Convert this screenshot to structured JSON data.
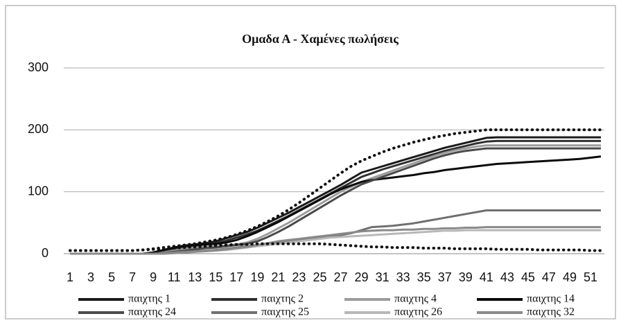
{
  "chart_data": {
    "type": "line",
    "title": "Ομαδα Α - Χαμένες πωλήσεις",
    "categories": [
      1,
      null,
      3,
      null,
      5,
      null,
      7,
      null,
      9,
      null,
      11,
      null,
      13,
      null,
      15,
      null,
      17,
      null,
      19,
      null,
      21,
      null,
      23,
      null,
      25,
      null,
      27,
      null,
      29,
      null,
      31,
      null,
      33,
      null,
      35,
      null,
      37,
      null,
      39,
      null,
      41,
      null,
      43,
      null,
      45,
      null,
      47,
      null,
      49,
      null,
      51,
      null
    ],
    "ylim": [
      0,
      300
    ],
    "yticks": [
      0,
      100,
      200,
      300
    ],
    "grid": true,
    "legend": "bottom",
    "series": [
      {
        "name": "παιχτης 1",
        "color": "#1a1a1a",
        "values": [
          0,
          0,
          0,
          0,
          0,
          0,
          0,
          0,
          2,
          6,
          10,
          13,
          15,
          17,
          20,
          25,
          30,
          35,
          42,
          50,
          58,
          66,
          75,
          84,
          93,
          102,
          111,
          121,
          131,
          136,
          141,
          146,
          151,
          156,
          161,
          166,
          171,
          175,
          179,
          183,
          187,
          188,
          188,
          188,
          188,
          188,
          188,
          188,
          188,
          188,
          188,
          188
        ]
      },
      {
        "name": "παιχτης 2",
        "color": "#303030",
        "values": [
          0,
          0,
          0,
          0,
          0,
          0,
          0,
          0,
          1,
          4,
          8,
          11,
          13,
          15,
          17,
          21,
          26,
          31,
          37,
          45,
          53,
          61,
          70,
          79,
          88,
          97,
          106,
          115,
          124,
          130,
          136,
          141,
          146,
          151,
          156,
          161,
          166,
          170,
          174,
          178,
          181,
          182,
          182,
          182,
          182,
          182,
          182,
          182,
          182,
          182,
          182,
          182
        ]
      },
      {
        "name": "παιχτης 4",
        "color": "#9c9c9c",
        "values": [
          0,
          0,
          0,
          0,
          0,
          0,
          0,
          0,
          0,
          2,
          5,
          8,
          10,
          11,
          12,
          13,
          15,
          18,
          24,
          32,
          41,
          50,
          60,
          70,
          80,
          90,
          100,
          108,
          116,
          122,
          128,
          134,
          140,
          146,
          152,
          158,
          163,
          167,
          170,
          173,
          175,
          175,
          175,
          175,
          175,
          175,
          175,
          175,
          175,
          175,
          175,
          175
        ]
      },
      {
        "name": "παιχτης 14",
        "color": "#0a0a0a",
        "values": [
          0,
          0,
          0,
          0,
          0,
          0,
          0,
          0,
          2,
          6,
          10,
          13,
          14,
          15,
          16,
          18,
          22,
          28,
          35,
          43,
          51,
          60,
          69,
          78,
          87,
          96,
          104,
          110,
          116,
          119,
          121,
          123,
          125,
          127,
          130,
          132,
          135,
          137,
          139,
          141,
          143,
          145,
          146,
          147,
          148,
          149,
          150,
          151,
          152,
          153,
          155,
          157
        ]
      },
      {
        "name": "παιχτης 24",
        "color": "#4a4a4a",
        "values": [
          0,
          0,
          0,
          0,
          0,
          0,
          0,
          0,
          0,
          1,
          3,
          5,
          7,
          9,
          10,
          12,
          14,
          16,
          20,
          27,
          35,
          44,
          54,
          64,
          74,
          84,
          94,
          103,
          112,
          118,
          124,
          130,
          136,
          142,
          148,
          154,
          159,
          163,
          166,
          168,
          170,
          170,
          170,
          170,
          170,
          170,
          170,
          170,
          170,
          170,
          170,
          170
        ]
      },
      {
        "name": "παιχτης 25",
        "color": "#707070",
        "values": [
          0,
          0,
          0,
          0,
          0,
          0,
          0,
          0,
          0,
          1,
          2,
          3,
          4,
          5,
          6,
          8,
          10,
          12,
          14,
          16,
          18,
          20,
          22,
          24,
          26,
          28,
          30,
          33,
          38,
          43,
          44,
          45,
          47,
          49,
          52,
          55,
          58,
          61,
          64,
          67,
          70,
          70,
          70,
          70,
          70,
          70,
          70,
          70,
          70,
          70,
          70,
          70
        ]
      },
      {
        "name": "παιχτης 26",
        "color": "#b8b8b8",
        "values": [
          0,
          0,
          0,
          0,
          0,
          0,
          0,
          0,
          0,
          0,
          1,
          2,
          3,
          4,
          5,
          6,
          8,
          10,
          12,
          14,
          16,
          18,
          20,
          22,
          24,
          26,
          27,
          28,
          29,
          30,
          31,
          32,
          33,
          34,
          35,
          36,
          37,
          37,
          38,
          38,
          38,
          38,
          38,
          38,
          38,
          38,
          38,
          38,
          38,
          38,
          38,
          38
        ]
      },
      {
        "name": "παιχτης 32",
        "color": "#8a8a8a",
        "values": [
          0,
          0,
          0,
          0,
          0,
          0,
          0,
          0,
          0,
          0,
          1,
          2,
          3,
          4,
          5,
          7,
          9,
          11,
          14,
          17,
          20,
          22,
          24,
          26,
          28,
          30,
          32,
          34,
          36,
          37,
          38,
          38,
          39,
          39,
          40,
          40,
          41,
          41,
          42,
          42,
          43,
          43,
          43,
          43,
          43,
          43,
          43,
          43,
          43,
          43,
          43,
          43
        ]
      },
      {
        "color": "#111111",
        "dotted": true,
        "values": [
          5,
          5,
          5,
          5,
          5,
          5,
          5,
          6,
          8,
          10,
          12,
          14,
          16,
          19,
          22,
          26,
          31,
          37,
          44,
          52,
          61,
          71,
          82,
          94,
          106,
          118,
          130,
          141,
          150,
          157,
          164,
          170,
          175,
          180,
          184,
          188,
          191,
          194,
          196,
          198,
          200,
          200,
          200,
          200,
          200,
          200,
          200,
          200,
          200,
          200,
          200,
          200
        ]
      },
      {
        "color": "#111111",
        "dotted": true,
        "values": [
          5,
          5,
          5,
          5,
          5,
          5,
          5,
          6,
          7,
          8,
          9,
          10,
          11,
          12,
          13,
          14,
          15,
          15,
          16,
          16,
          16,
          16,
          16,
          16,
          16,
          15,
          14,
          13,
          12,
          11,
          11,
          10,
          10,
          10,
          9,
          9,
          9,
          8,
          8,
          8,
          8,
          7,
          7,
          7,
          7,
          6,
          6,
          6,
          6,
          6,
          5,
          5
        ]
      }
    ]
  }
}
